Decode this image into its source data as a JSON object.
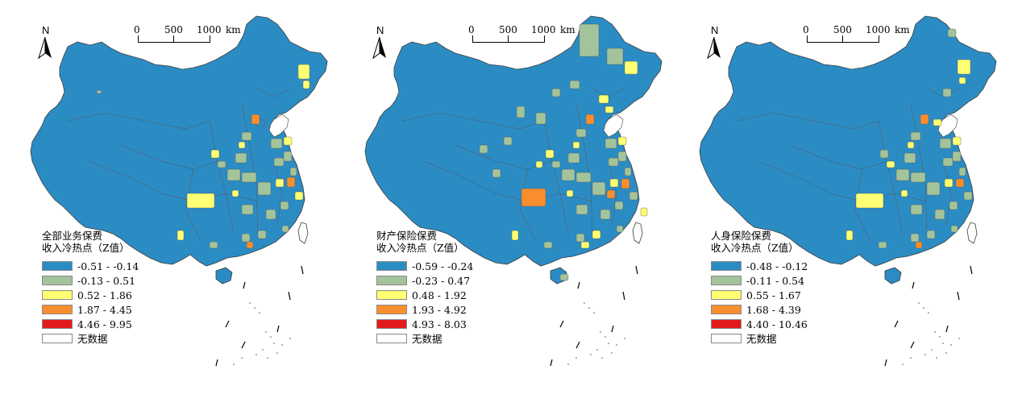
{
  "north_label": "N",
  "scale": {
    "ticks": [
      "0",
      "500",
      "1000"
    ],
    "unit": "km"
  },
  "colors": {
    "class1": "#2b8cc4",
    "class2": "#a3c39b",
    "class3": "#ffff73",
    "class4": "#f98e2e",
    "class5": "#e31a1c",
    "nodata": "#ffffff",
    "border": "#3c3c3c"
  },
  "panels": [
    {
      "title_line1": "全部业务保费",
      "title_line2": "收入冷热点（Z值）",
      "legend": [
        "-0.51 - -0.14",
        "-0.13 - 0.51",
        "0.52 - 1.86",
        "1.87 - 4.45",
        "4.46 - 9.95",
        "无数据"
      ]
    },
    {
      "title_line1": "财产保险保费",
      "title_line2": "收入冷热点（Z值）",
      "legend": [
        "-0.59 - -0.24",
        "-0.23 - 0.47",
        "0.48 - 1.92",
        "1.93 - 4.92",
        "4.93 - 8.03",
        "无数据"
      ]
    },
    {
      "title_line1": "人身保险保费",
      "title_line2": "收入冷热点（Z值）",
      "legend": [
        "-0.48 - -0.12",
        "-0.11 - 0.54",
        "0.55 - 1.67",
        "1.68 - 4.39",
        "4.40 - 10.46",
        "无数据"
      ]
    }
  ]
}
